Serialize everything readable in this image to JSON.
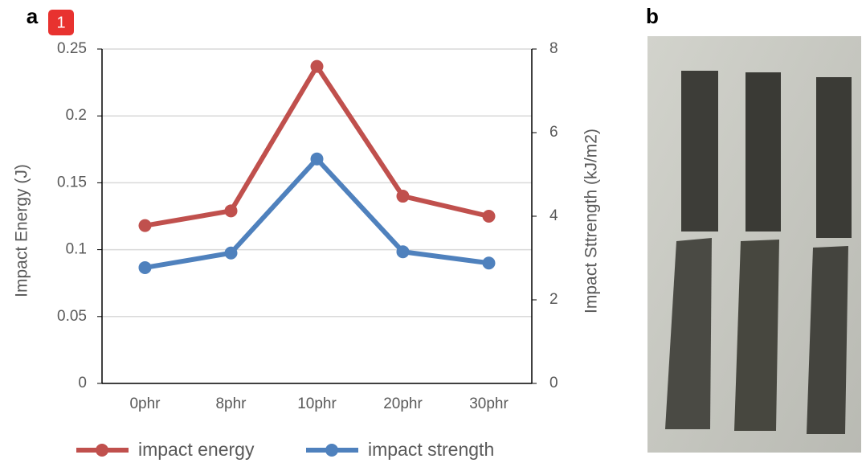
{
  "panel_labels": [
    "a",
    "b"
  ],
  "marker": "1",
  "chart_data": {
    "type": "line",
    "categories": [
      "0phr",
      "8phr",
      "10phr",
      "20phr",
      "30phr"
    ],
    "y_label": "Impact Energy (J)",
    "y2_label": "Impact Sttrength (kJ/m2)",
    "series": [
      {
        "name": "impact energy",
        "color": "#c0504d",
        "values": [
          0.118,
          0.129,
          0.237,
          0.14,
          0.125
        ]
      },
      {
        "name": "impact strength",
        "color": "#4f81bd",
        "axis": "y2",
        "values": [
          2.77,
          3.12,
          5.37,
          3.15,
          2.88
        ]
      }
    ],
    "ylim": [
      0,
      0.25
    ],
    "yticks": [
      0,
      0.05,
      0.1,
      0.15,
      0.2,
      0.25
    ],
    "y2lim": [
      0,
      8
    ],
    "y2ticks": [
      0,
      2,
      4,
      6,
      8
    ],
    "grid": true
  }
}
